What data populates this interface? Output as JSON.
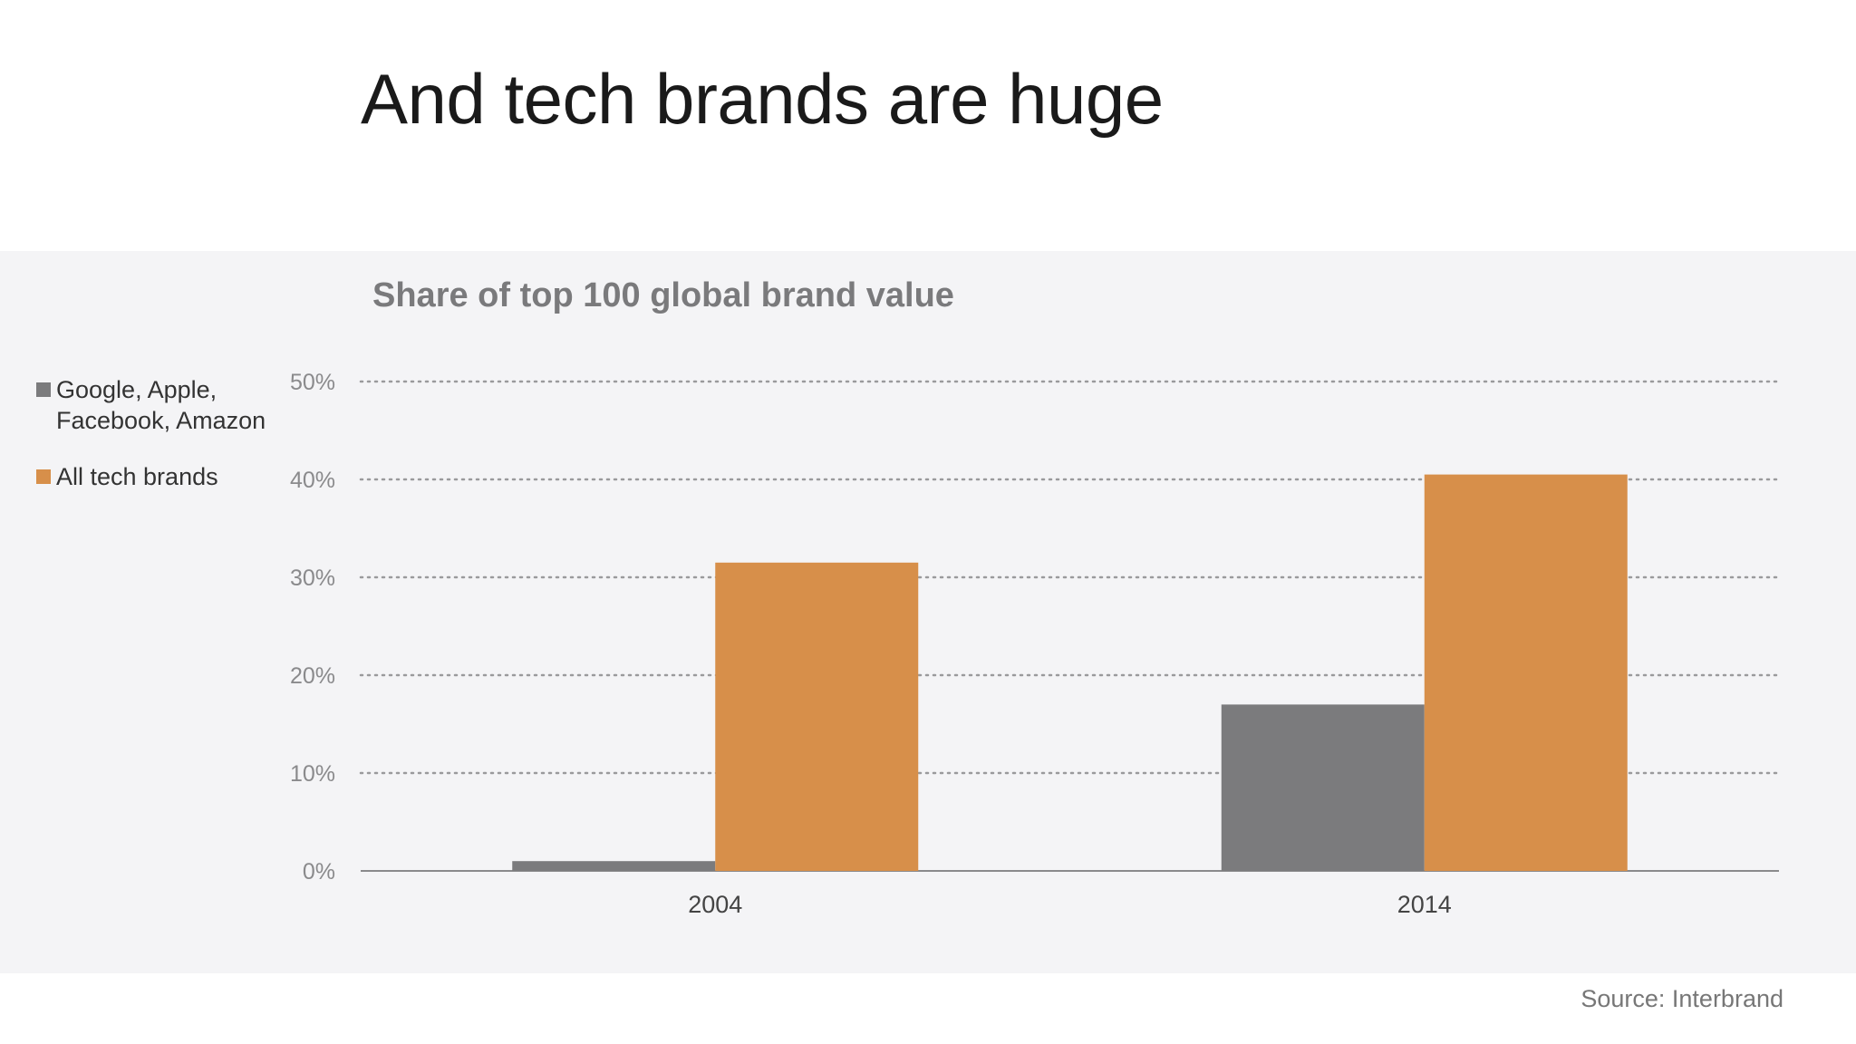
{
  "slide": {
    "title": "And tech brands are huge",
    "source": "Source: Interbrand"
  },
  "colors": {
    "background": "#ffffff",
    "panel": "#f4f4f6",
    "series_gray": "#7b7b7d",
    "series_orange": "#d78f4a",
    "grid": "#9a9a9c"
  },
  "chart_data": {
    "type": "bar",
    "title": "Share of top 100 global brand value",
    "xlabel": "",
    "ylabel": "",
    "categories": [
      "2004",
      "2014"
    ],
    "series": [
      {
        "name": "Google, Apple,\nFacebook, Amazon",
        "color": "#7b7b7d",
        "values": [
          1,
          17
        ]
      },
      {
        "name": "All tech brands",
        "color": "#d78f4a",
        "values": [
          31.5,
          40.5
        ]
      }
    ],
    "ylim": [
      0,
      50
    ],
    "yticks": [
      0,
      10,
      20,
      30,
      40,
      50
    ],
    "ytick_labels": [
      "0%",
      "10%",
      "20%",
      "30%",
      "40%",
      "50%"
    ],
    "grid": true,
    "grid_style": "dotted",
    "legend": "left"
  }
}
